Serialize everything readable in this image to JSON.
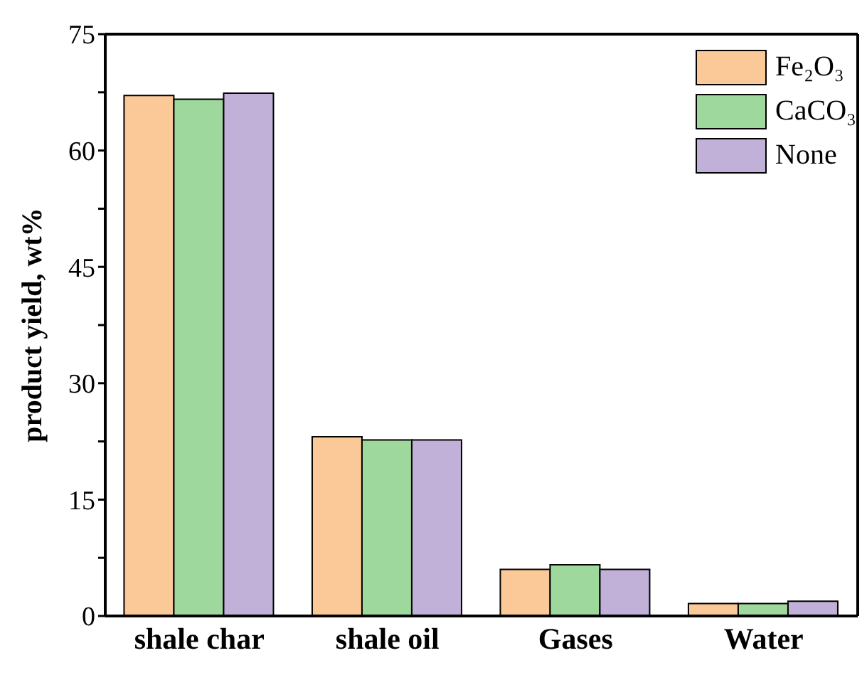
{
  "chart_data": {
    "type": "bar",
    "ylabel": "product yield, wt%",
    "categories": [
      "shale char",
      "shale oil",
      "Gases",
      "Water"
    ],
    "series": [
      {
        "name": "Fe₂O₃",
        "color": "#fbc897",
        "values": [
          67.1,
          23.1,
          6.0,
          1.6
        ]
      },
      {
        "name": "CaCO₃",
        "color": "#9fd89d",
        "values": [
          66.6,
          22.7,
          6.6,
          1.6
        ]
      },
      {
        "name": "None",
        "color": "#c1b0d7",
        "values": [
          67.4,
          22.7,
          6.0,
          1.9
        ]
      }
    ],
    "ylim": [
      0,
      75
    ],
    "yticks": [
      0,
      {
        "value": 7.5,
        "label": null
      },
      15,
      {
        "value": 22.5,
        "label": null
      },
      30,
      {
        "value": 37.5,
        "label": null
      },
      45,
      {
        "value": 52.5,
        "label": null
      },
      60,
      {
        "value": 67.5,
        "label": null
      },
      75
    ],
    "grid": false,
    "legend": "top right"
  }
}
